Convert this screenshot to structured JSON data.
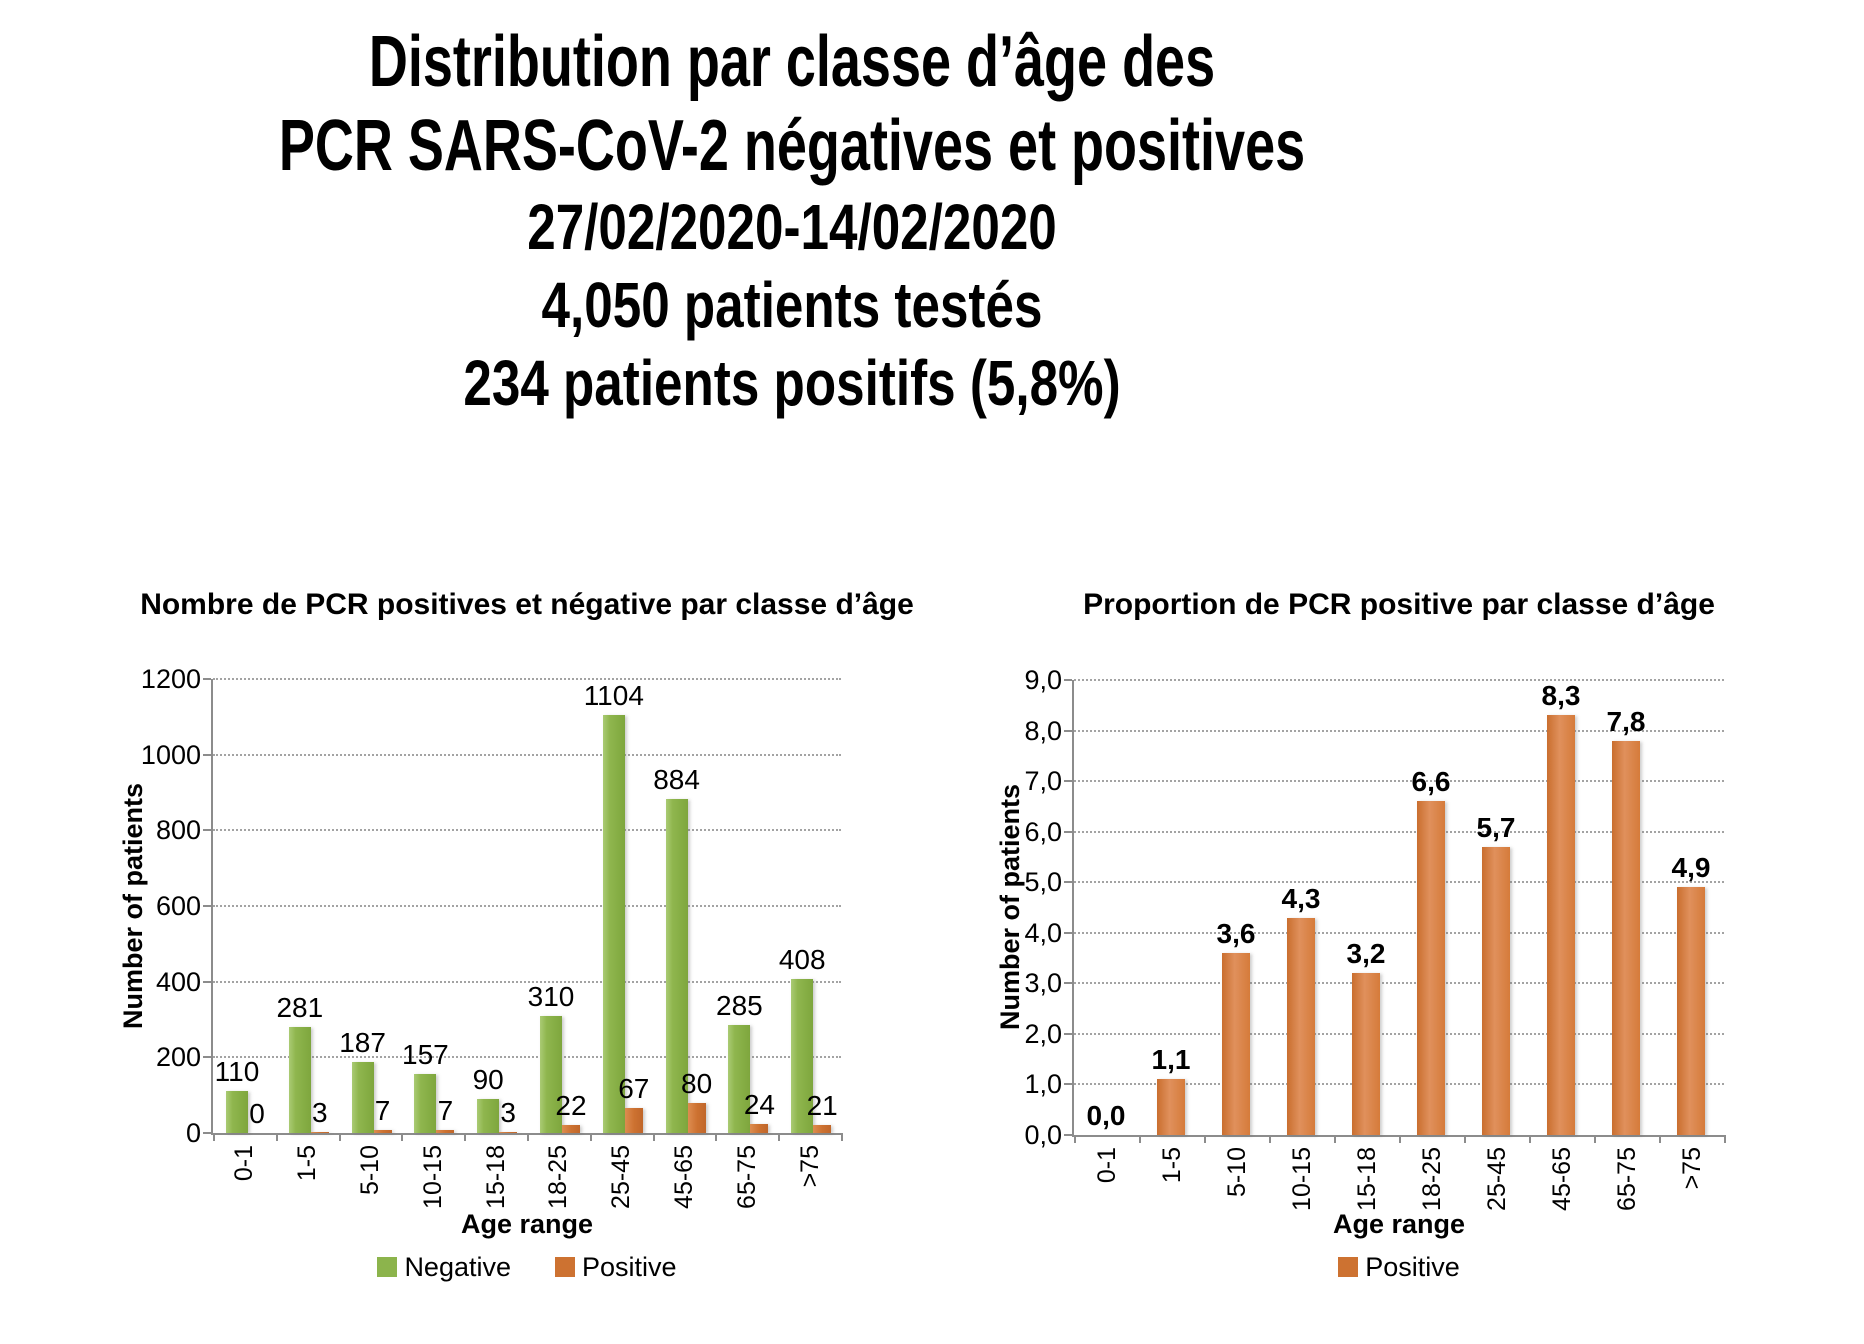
{
  "slide": {
    "title_lines": [
      "Distribution par classe d’âge des",
      "PCR SARS-CoV-2 négatives et positives",
      "27/02/2020-14/02/2020",
      "4,050 patients testés",
      "234 patients positifs (5,8%)"
    ]
  },
  "chart_data": [
    {
      "type": "bar",
      "title": "Nombre de PCR positives et négative par classe d’âge",
      "xlabel": "Age range",
      "ylabel": "Number of patients",
      "categories": [
        "0-1",
        "1-5",
        "5-10",
        "10-15",
        "15-18",
        "18-25",
        "25-45",
        "45-65",
        "65-75",
        ">75"
      ],
      "series": [
        {
          "name": "Negative",
          "color": "#8cb44c",
          "values": [
            110,
            281,
            187,
            157,
            90,
            310,
            1104,
            884,
            285,
            408
          ],
          "value_labels": [
            "110",
            "281",
            "187",
            "157",
            "90",
            "310",
            "1104",
            "884",
            "285",
            "408"
          ]
        },
        {
          "name": "Positive",
          "color": "#cd7231",
          "values": [
            0,
            3,
            7,
            7,
            3,
            22,
            67,
            80,
            24,
            21
          ],
          "value_labels": [
            "0",
            "3",
            "7",
            "7",
            "3",
            "22",
            "67",
            "80",
            "24",
            "21"
          ]
        }
      ],
      "ylim": [
        0,
        1200
      ],
      "ytick_labels": [
        "0",
        "200",
        "400",
        "600",
        "800",
        "1000",
        "1200"
      ],
      "grid": true,
      "legend_position": "bottom"
    },
    {
      "type": "bar",
      "title": "Proportion de PCR positive par classe d’âge",
      "xlabel": "Age range",
      "ylabel": "Number of patients",
      "categories": [
        "0-1",
        "1-5",
        "5-10",
        "10-15",
        "15-18",
        "18-25",
        "25-45",
        "45-65",
        "65-75",
        ">75"
      ],
      "series": [
        {
          "name": "Positive",
          "color": "#d8803f",
          "values": [
            0.0,
            1.1,
            3.6,
            4.3,
            3.2,
            6.6,
            5.7,
            8.3,
            7.8,
            4.9
          ],
          "value_labels": [
            "0,0",
            "1,1",
            "3,6",
            "4,3",
            "3,2",
            "6,6",
            "5,7",
            "8,3",
            "7,8",
            "4,9"
          ]
        }
      ],
      "ylim": [
        0,
        9
      ],
      "ytick_labels": [
        "0,0",
        "1,0",
        "2,0",
        "3,0",
        "4,0",
        "5,0",
        "6,0",
        "7,0",
        "8,0",
        "9,0"
      ],
      "grid": true,
      "legend_position": "bottom"
    }
  ]
}
